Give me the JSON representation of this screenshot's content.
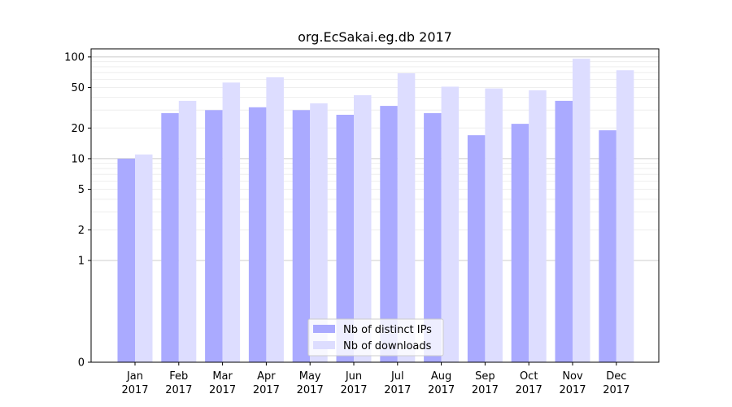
{
  "chart_data": {
    "type": "bar",
    "title": "org.EcSakai.eg.db 2017",
    "xlabel": "",
    "ylabel": "",
    "yscale": "symlog",
    "ylim": [
      0,
      120
    ],
    "yticks": [
      0,
      1,
      2,
      5,
      10,
      20,
      50,
      100
    ],
    "grid": true,
    "legend_position": "bottom-center",
    "categories": [
      [
        "Jan",
        "2017"
      ],
      [
        "Feb",
        "2017"
      ],
      [
        "Mar",
        "2017"
      ],
      [
        "Apr",
        "2017"
      ],
      [
        "May",
        "2017"
      ],
      [
        "Jun",
        "2017"
      ],
      [
        "Jul",
        "2017"
      ],
      [
        "Aug",
        "2017"
      ],
      [
        "Sep",
        "2017"
      ],
      [
        "Oct",
        "2017"
      ],
      [
        "Nov",
        "2017"
      ],
      [
        "Dec",
        "2017"
      ]
    ],
    "series": [
      {
        "name": "Nb of distinct IPs",
        "color": "#aaaaff",
        "values": [
          10,
          28,
          30,
          32,
          30,
          27,
          33,
          28,
          17,
          22,
          37,
          19
        ]
      },
      {
        "name": "Nb of downloads",
        "color": "#ddddff",
        "values": [
          11,
          37,
          56,
          63,
          35,
          42,
          69,
          51,
          49,
          47,
          96,
          74
        ]
      }
    ]
  }
}
